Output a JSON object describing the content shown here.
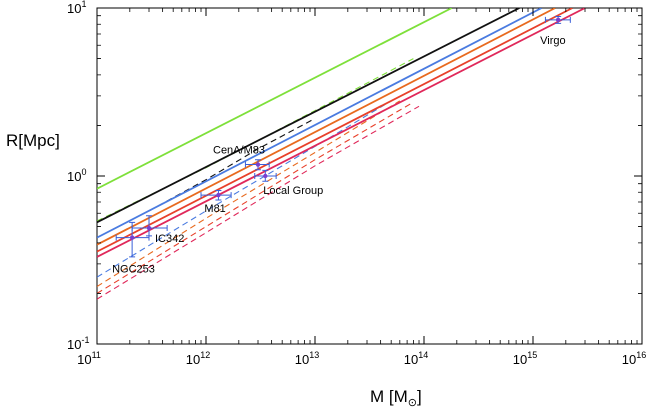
{
  "chart_data": {
    "type": "line",
    "xlabel": "M [M",
    "xlabel_sub": "⊙",
    "xlabel_close": "]",
    "ylabel": "R[Mpc]",
    "xscale": "log",
    "yscale": "log",
    "xlim": [
      100000000000.0,
      1e+16
    ],
    "ylim": [
      0.1,
      10
    ],
    "x_ticks": [
      {
        "value": 100000000000.0,
        "base": "10",
        "exp": "11"
      },
      {
        "value": 1000000000000.0,
        "base": "10",
        "exp": "12"
      },
      {
        "value": 10000000000000.0,
        "base": "10",
        "exp": "13"
      },
      {
        "value": 100000000000000.0,
        "base": "10",
        "exp": "14"
      },
      {
        "value": 1000000000000000.0,
        "base": "10",
        "exp": "15"
      },
      {
        "value": 1e+16,
        "base": "10",
        "exp": "16"
      }
    ],
    "y_ticks": [
      {
        "value": 0.1,
        "base": "10",
        "exp": "-1"
      },
      {
        "value": 1,
        "base": "10",
        "exp": "0"
      },
      {
        "value": 10,
        "base": "10",
        "exp": "1"
      }
    ],
    "series": [
      {
        "name": "green-solid",
        "color": "#7ee03a",
        "dash": false,
        "x": [
          100000000000.0,
          180000000000000.0
        ],
        "y": [
          0.84,
          10
        ]
      },
      {
        "name": "green-dashed",
        "color": "#7ee03a",
        "dash": true,
        "x": [
          100000000000.0,
          1000000000000.0,
          10000000000000.0,
          80000000000000.0
        ],
        "y": [
          0.54,
          1.12,
          2.45,
          5.0
        ]
      },
      {
        "name": "black-solid",
        "color": "#111111",
        "dash": false,
        "x": [
          100000000000.0,
          750000000000000.0
        ],
        "y": [
          0.53,
          10
        ]
      },
      {
        "name": "black-dashed",
        "color": "#111111",
        "dash": true,
        "x": [
          300000000000.0,
          1000000000000.0,
          3000000000000.0,
          10000000000000.0
        ],
        "y": [
          0.62,
          0.95,
          1.45,
          2.2
        ]
      },
      {
        "name": "blue-solid",
        "color": "#4a7be0",
        "dash": false,
        "x": [
          100000000000.0,
          1200000000000000.0
        ],
        "y": [
          0.43,
          10
        ]
      },
      {
        "name": "blue-dashed",
        "color": "#4a7be0",
        "dash": true,
        "x": [
          100000000000.0,
          1000000000000.0,
          10000000000000.0,
          50000000000000.0
        ],
        "y": [
          0.25,
          0.62,
          1.5,
          2.8
        ]
      },
      {
        "name": "orange-solid",
        "color": "#e86a1e",
        "dash": false,
        "x": [
          100000000000.0,
          1600000000000000.0
        ],
        "y": [
          0.39,
          10
        ]
      },
      {
        "name": "orange-dashed",
        "color": "#e86a1e",
        "dash": true,
        "x": [
          100000000000.0,
          1000000000000.0,
          10000000000000.0,
          60000000000000.0
        ],
        "y": [
          0.22,
          0.56,
          1.38,
          2.8
        ]
      },
      {
        "name": "red-orange-solid",
        "color": "#e8402a",
        "dash": false,
        "x": [
          100000000000.0,
          2300000000000000.0
        ],
        "y": [
          0.355,
          10
        ]
      },
      {
        "name": "red-orange-dashed",
        "color": "#e8402a",
        "dash": true,
        "x": [
          100000000000.0,
          1000000000000.0,
          10000000000000.0,
          80000000000000.0
        ],
        "y": [
          0.2,
          0.5,
          1.25,
          2.75
        ]
      },
      {
        "name": "crimson-solid",
        "color": "#e0285a",
        "dash": false,
        "x": [
          100000000000.0,
          3000000000000000.0
        ],
        "y": [
          0.33,
          10
        ]
      },
      {
        "name": "crimson-dashed",
        "color": "#e0285a",
        "dash": true,
        "x": [
          100000000000.0,
          1000000000000.0,
          10000000000000.0,
          90000000000000.0
        ],
        "y": [
          0.185,
          0.46,
          1.15,
          2.6
        ]
      }
    ],
    "points": [
      {
        "label": "Virgo",
        "x": 1700000000000000.0,
        "y": 8.5,
        "xerr": [
          1300000000000000.0,
          2200000000000000.0
        ],
        "yerr": [
          8.1,
          8.9
        ],
        "label_anchor": "below"
      },
      {
        "label": "CenA/M83",
        "x": 3000000000000.0,
        "y": 1.17,
        "xerr": [
          2300000000000.0,
          3800000000000.0
        ],
        "yerr": [
          1.09,
          1.25
        ],
        "label_anchor": "above"
      },
      {
        "label": "Local Group",
        "x": 3500000000000.0,
        "y": 1.0,
        "xerr": [
          2800000000000.0,
          4400000000000.0
        ],
        "yerr": [
          0.93,
          1.08
        ],
        "label_anchor": "below"
      },
      {
        "label": "M81",
        "x": 1300000000000.0,
        "y": 0.77,
        "xerr": [
          900000000000.0,
          1700000000000.0
        ],
        "yerr": [
          0.72,
          0.82
        ],
        "label_anchor": "below"
      },
      {
        "label": "IC342",
        "x": 300000000000.0,
        "y": 0.49,
        "xerr": [
          210000000000.0,
          440000000000.0
        ],
        "yerr": [
          0.44,
          0.58
        ],
        "label_anchor": "right"
      },
      {
        "label": "NGC253",
        "x": 210000000000.0,
        "y": 0.43,
        "xerr": [
          150000000000.0,
          300000000000.0
        ],
        "yerr": [
          0.33,
          0.53
        ],
        "label_anchor": "below"
      }
    ],
    "point_color": "#7a3fd0",
    "errorbar_color": "#3a5fd8",
    "grid": false
  }
}
